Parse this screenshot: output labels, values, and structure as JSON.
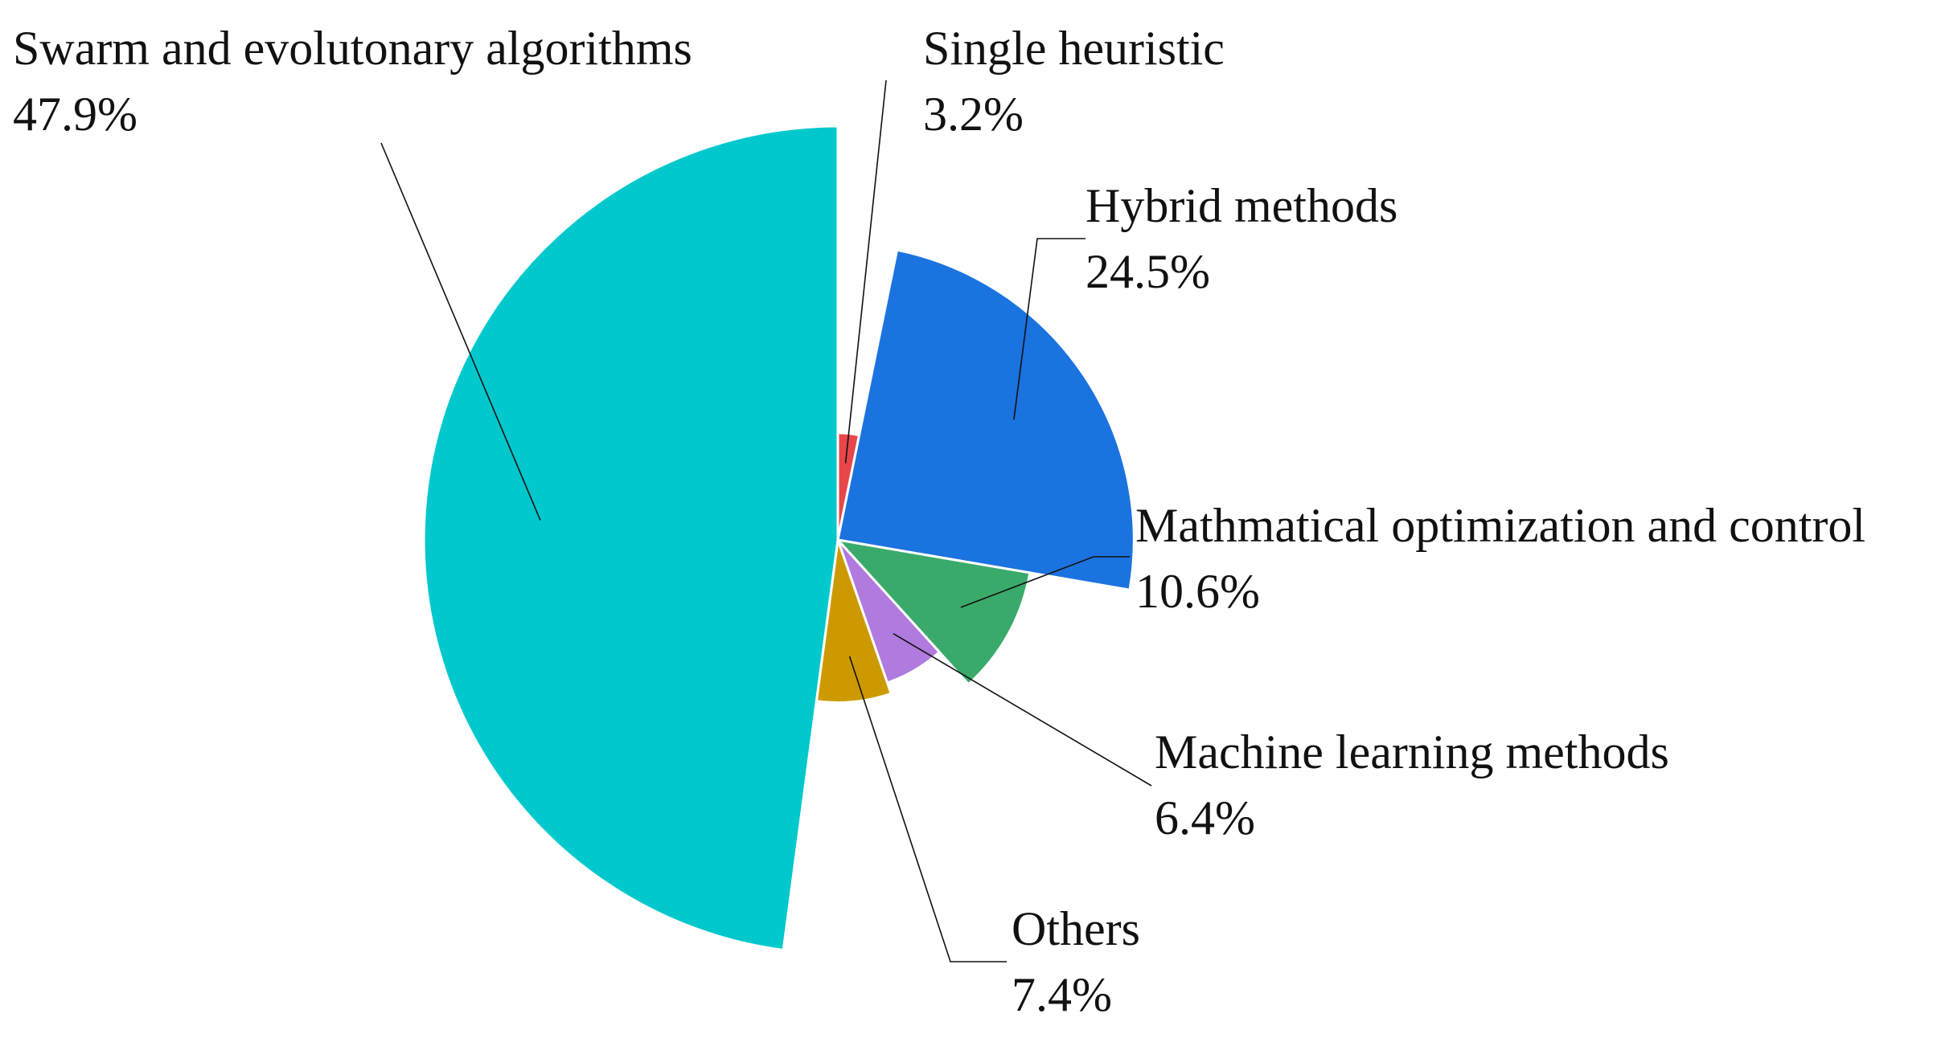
{
  "chart_data": {
    "type": "pie",
    "variant": "variable-radius",
    "title": "",
    "slices": [
      {
        "label": "Single heuristic",
        "percent_label": "3.2%",
        "value": 3.2,
        "color": "#e8464a"
      },
      {
        "label": "Hybrid methods",
        "percent_label": "24.5%",
        "value": 24.5,
        "color": "#1b73e0"
      },
      {
        "label": "Mathmatical optimization and control",
        "percent_label": "10.6%",
        "value": 10.6,
        "color": "#3aaa6b"
      },
      {
        "label": "Machine learning methods",
        "percent_label": "6.4%",
        "value": 6.4,
        "color": "#b07ade"
      },
      {
        "label": "Others",
        "percent_label": "7.4%",
        "value": 7.4,
        "color": "#cc9a00"
      },
      {
        "label": "Swarm and evolutonary algorithms",
        "percent_label": "47.9%",
        "value": 47.9,
        "color": "#00c8cc"
      }
    ],
    "legend": "none"
  }
}
